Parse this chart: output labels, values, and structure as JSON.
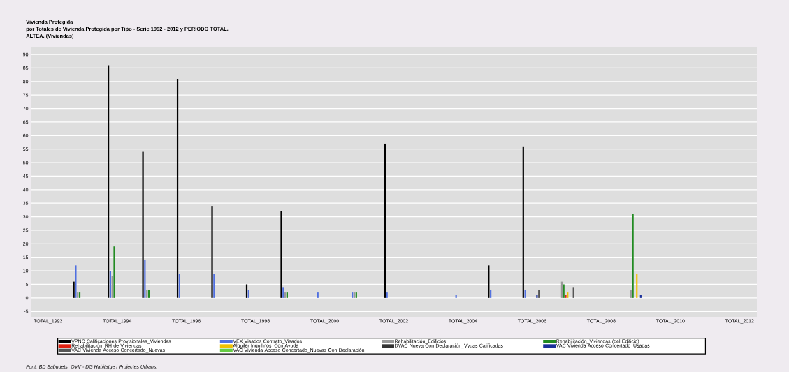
{
  "chart_data": {
    "type": "bar",
    "title": "Vivienda Protegida",
    "subtitle": "por Totales de Vivienda Protegida por Tipo - Serie 1992 - 2012 y PERIODO TOTAL.",
    "annotations": [
      "ALTEA. (Viviendas)",
      "Font: BD Sabudets. OVV - DG Habitatge i Projectes Urbans."
    ],
    "categories": [
      "TOTAL_1992",
      null,
      "TOTAL_1994",
      null,
      "TOTAL_1996",
      null,
      "TOTAL_1998",
      null,
      "TOTAL_2000",
      null,
      "TOTAL_2002",
      null,
      "TOTAL_2004",
      null,
      "TOTAL_2006",
      null,
      "TOTAL_2008",
      null,
      "TOTAL_2010",
      null,
      "TOTAL_2012"
    ],
    "series": [
      {
        "name": "VPNC Calificaciones Provisionales_Viviendas",
        "color": "#000000",
        "values": [
          null,
          6,
          86,
          54,
          81,
          34,
          5,
          32,
          null,
          null,
          57,
          null,
          null,
          12,
          56,
          null,
          null,
          null,
          null,
          null,
          null
        ]
      },
      {
        "name": "VEX Visados Contrato_Visados",
        "color": "#4f6fe0",
        "values": [
          null,
          12,
          10,
          14,
          9,
          9,
          3,
          4,
          2,
          2,
          2,
          null,
          1,
          3,
          3,
          null,
          null,
          null,
          null,
          null,
          null
        ]
      },
      {
        "name": "Rehabilitación_Edificios",
        "color": "#999999",
        "values": [
          null,
          2,
          8,
          3,
          null,
          null,
          null,
          2,
          null,
          2,
          null,
          null,
          null,
          null,
          null,
          6,
          null,
          3,
          null,
          null,
          null
        ]
      },
      {
        "name": "Rehabilitación_Viviendas (del Edificio)",
        "color": "#228b22",
        "values": [
          null,
          2,
          19,
          3,
          null,
          null,
          null,
          2,
          null,
          2,
          null,
          null,
          null,
          null,
          null,
          5,
          null,
          31,
          null,
          null,
          null
        ]
      },
      {
        "name": "Rehabilitación_RH de Viviendas",
        "color": "#e02010",
        "values": [
          null,
          null,
          null,
          null,
          null,
          null,
          null,
          null,
          null,
          null,
          null,
          null,
          null,
          null,
          null,
          1,
          null,
          null,
          null,
          null,
          null
        ]
      },
      {
        "name": "Alquiler Inquilinos_Con Ayuda",
        "color": "#f0c000",
        "values": [
          null,
          null,
          null,
          null,
          null,
          null,
          null,
          null,
          null,
          null,
          null,
          null,
          null,
          null,
          null,
          2,
          null,
          9,
          null,
          null,
          null
        ]
      },
      {
        "name": "DVAC Nueva Con Declaración_Vvdas Calificadas",
        "color": "#333333",
        "values": [
          null,
          null,
          null,
          null,
          null,
          null,
          null,
          null,
          null,
          null,
          null,
          null,
          null,
          null,
          null,
          null,
          null,
          null,
          null,
          null,
          null
        ]
      },
      {
        "name": "VAC Vivienda Acceso Concertado_Usadas",
        "color": "#1a2f9a",
        "values": [
          null,
          null,
          null,
          null,
          null,
          null,
          null,
          null,
          null,
          null,
          null,
          null,
          null,
          null,
          1,
          null,
          null,
          1,
          null,
          null,
          null
        ]
      },
      {
        "name": "VAC Vivienda Acceso Concertado_Nuevas",
        "color": "#555555",
        "values": [
          null,
          null,
          null,
          null,
          null,
          null,
          null,
          null,
          null,
          null,
          null,
          null,
          null,
          null,
          3,
          4,
          null,
          null,
          null,
          null,
          null
        ]
      },
      {
        "name": "VAC Vivienda Acceso Concertado_Nuevas Con Declaración",
        "color": "#66cc44",
        "values": [
          null,
          null,
          null,
          null,
          null,
          null,
          null,
          null,
          null,
          null,
          null,
          null,
          null,
          null,
          null,
          null,
          null,
          null,
          null,
          null,
          null
        ]
      }
    ],
    "ylim": [
      -7,
      92.6
    ],
    "yticks": [
      -5,
      0,
      5,
      10,
      15,
      20,
      25,
      30,
      35,
      40,
      45,
      50,
      55,
      60,
      65,
      70,
      75,
      80,
      85,
      90
    ],
    "grid": "y",
    "legend": "bottom"
  }
}
